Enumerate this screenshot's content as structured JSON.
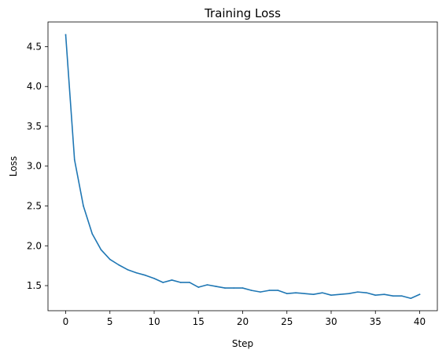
{
  "chart_data": {
    "type": "line",
    "title": "Training Loss",
    "xlabel": "Step",
    "ylabel": "Loss",
    "xlim": [
      -2,
      42
    ],
    "ylim": [
      1.185,
      4.81
    ],
    "grid": false,
    "x_ticks": [
      0,
      5,
      10,
      15,
      20,
      25,
      30,
      35,
      40
    ],
    "x_tick_labels": [
      "0",
      "5",
      "10",
      "15",
      "20",
      "25",
      "30",
      "35",
      "40"
    ],
    "y_ticks": [
      1.5,
      2.0,
      2.5,
      3.0,
      3.5,
      4.0,
      4.5
    ],
    "y_tick_labels": [
      "1.5",
      "2.0",
      "2.5",
      "3.0",
      "3.5",
      "4.0",
      "4.5"
    ],
    "series": [
      {
        "color": "#1f77b4",
        "x": [
          0,
          1,
          2,
          3,
          4,
          5,
          6,
          7,
          8,
          9,
          10,
          11,
          12,
          13,
          14,
          15,
          16,
          17,
          18,
          19,
          20,
          21,
          22,
          23,
          24,
          25,
          26,
          27,
          28,
          29,
          30,
          31,
          32,
          33,
          34,
          35,
          36,
          37,
          38,
          39,
          40
        ],
        "y": [
          4.65,
          3.08,
          2.5,
          2.15,
          1.95,
          1.83,
          1.76,
          1.7,
          1.66,
          1.63,
          1.59,
          1.54,
          1.57,
          1.54,
          1.54,
          1.48,
          1.51,
          1.49,
          1.47,
          1.47,
          1.47,
          1.44,
          1.42,
          1.44,
          1.44,
          1.4,
          1.41,
          1.4,
          1.39,
          1.41,
          1.38,
          1.39,
          1.4,
          1.42,
          1.41,
          1.38,
          1.39,
          1.37,
          1.37,
          1.34,
          1.39
        ]
      }
    ]
  }
}
